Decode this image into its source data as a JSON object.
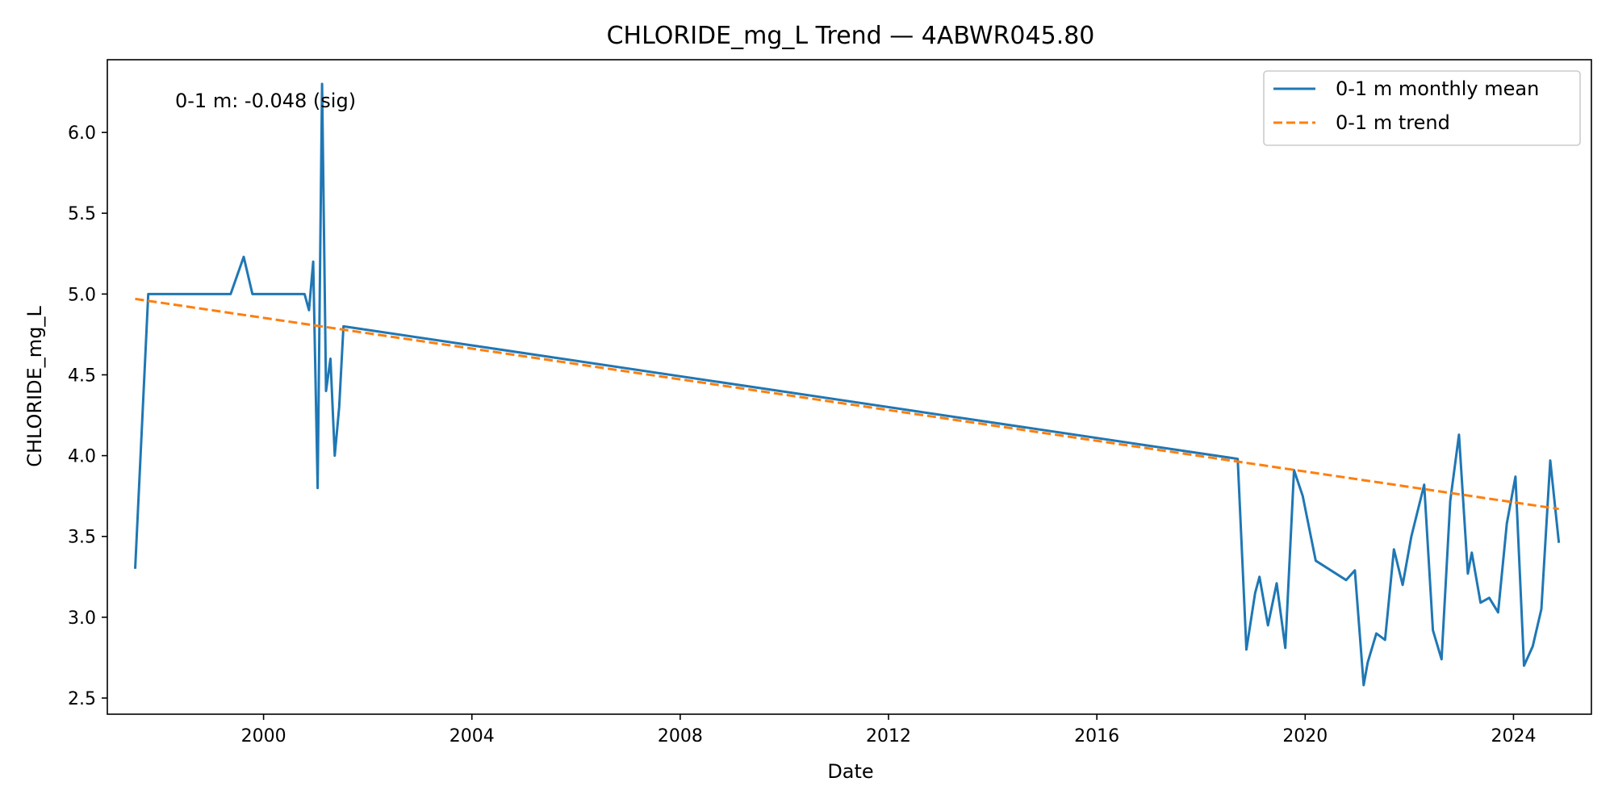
{
  "chart_data": {
    "type": "line",
    "title": "CHLORIDE_mg_L Trend — 4ABWR045.80",
    "xlabel": "Date",
    "ylabel": "CHLORIDE_mg_L",
    "xlim": [
      "1997-01-01",
      "2025-07-01"
    ],
    "ylim": [
      2.4,
      6.45
    ],
    "x_ticks": [
      "2000",
      "2004",
      "2008",
      "2012",
      "2016",
      "2020",
      "2024"
    ],
    "y_ticks": [
      2.5,
      3.0,
      3.5,
      4.0,
      4.5,
      5.0,
      5.5,
      6.0
    ],
    "y_tick_labels": [
      "2.5",
      "3.0",
      "3.5",
      "4.0",
      "4.5",
      "5.0",
      "5.5",
      "6.0"
    ],
    "grid": false,
    "legend": "top-right",
    "annotation": "0-1 m: -0.048 (sig)",
    "series": [
      {
        "name": "0-1 m monthly mean",
        "style": "solid",
        "color": "#1f77b4",
        "points": [
          [
            "1997-07-15",
            3.3
          ],
          [
            "1997-10-15",
            5.0
          ],
          [
            "1999-05-15",
            5.0
          ],
          [
            "1999-08-15",
            5.23
          ],
          [
            "1999-10-15",
            5.0
          ],
          [
            "2000-10-15",
            5.0
          ],
          [
            "2000-11-15",
            4.9
          ],
          [
            "2000-12-15",
            5.2
          ],
          [
            "2001-01-15",
            3.8
          ],
          [
            "2001-02-15",
            6.3
          ],
          [
            "2001-03-15",
            4.4
          ],
          [
            "2001-04-15",
            4.6
          ],
          [
            "2001-05-15",
            4.0
          ],
          [
            "2001-06-15",
            4.3
          ],
          [
            "2001-07-15",
            4.8
          ],
          [
            "2018-09-15",
            3.98
          ],
          [
            "2018-11-15",
            2.8
          ],
          [
            "2019-01-15",
            3.15
          ],
          [
            "2019-02-15",
            3.25
          ],
          [
            "2019-04-15",
            2.95
          ],
          [
            "2019-06-15",
            3.21
          ],
          [
            "2019-08-15",
            2.81
          ],
          [
            "2019-10-15",
            3.91
          ],
          [
            "2019-12-15",
            3.75
          ],
          [
            "2020-03-15",
            3.35
          ],
          [
            "2020-10-15",
            3.23
          ],
          [
            "2020-12-15",
            3.29
          ],
          [
            "2021-02-15",
            2.58
          ],
          [
            "2021-03-15",
            2.72
          ],
          [
            "2021-05-15",
            2.9
          ],
          [
            "2021-07-15",
            2.86
          ],
          [
            "2021-09-15",
            3.42
          ],
          [
            "2021-11-15",
            3.2
          ],
          [
            "2022-01-15",
            3.5
          ],
          [
            "2022-04-15",
            3.82
          ],
          [
            "2022-06-15",
            2.92
          ],
          [
            "2022-08-15",
            2.74
          ],
          [
            "2022-10-15",
            3.72
          ],
          [
            "2022-12-15",
            4.13
          ],
          [
            "2023-02-15",
            3.27
          ],
          [
            "2023-03-15",
            3.4
          ],
          [
            "2023-05-15",
            3.09
          ],
          [
            "2023-07-15",
            3.12
          ],
          [
            "2023-09-15",
            3.03
          ],
          [
            "2023-11-15",
            3.58
          ],
          [
            "2024-01-15",
            3.87
          ],
          [
            "2024-03-15",
            2.7
          ],
          [
            "2024-05-15",
            2.82
          ],
          [
            "2024-07-15",
            3.05
          ],
          [
            "2024-09-15",
            3.97
          ],
          [
            "2024-11-15",
            3.46
          ]
        ]
      },
      {
        "name": "0-1 m trend",
        "style": "dashed",
        "color": "#ff7f0e",
        "points": [
          [
            "1997-07-15",
            4.97
          ],
          [
            "2024-11-15",
            3.67
          ]
        ]
      }
    ]
  }
}
